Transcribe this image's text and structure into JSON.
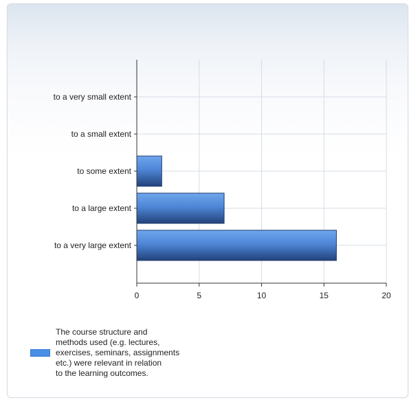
{
  "chart_data": {
    "type": "bar",
    "orientation": "horizontal",
    "categories": [
      "to a very small extent",
      "to a small extent",
      "to some extent",
      "to a large extent",
      "to a very large extent"
    ],
    "series": [
      {
        "name": "The course structure and\nmethods used (e.g. lectures,\nexercises, seminars, assignments\netc.) were relevant in relation\nto the learning outcomes.",
        "values": [
          0,
          0,
          2,
          7,
          16
        ],
        "color": "#4a8fe6"
      }
    ],
    "xlim": [
      0,
      20
    ],
    "xticks": [
      0,
      5,
      10,
      15,
      20
    ],
    "grid": true,
    "legend_position": "bottom-left"
  },
  "colors": {
    "bar_light": "#6ea6ee",
    "bar_dark": "#22427a",
    "grid": "#d6dde8",
    "axis": "#333333"
  }
}
